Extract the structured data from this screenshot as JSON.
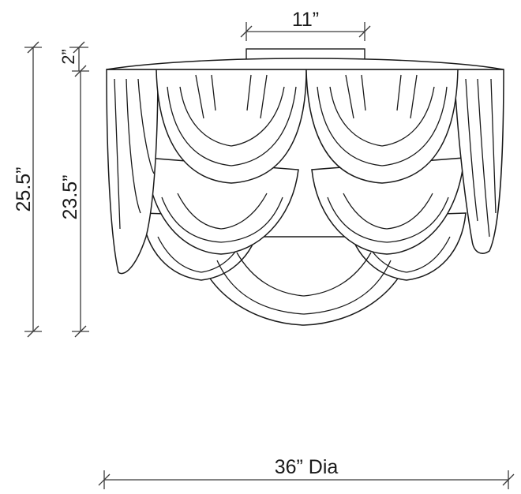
{
  "dimensions": {
    "canopy_width": "11”",
    "canopy_height": "2”",
    "overall_height": "25.5”",
    "body_height": "23.5”",
    "diameter": "36” Dia"
  }
}
